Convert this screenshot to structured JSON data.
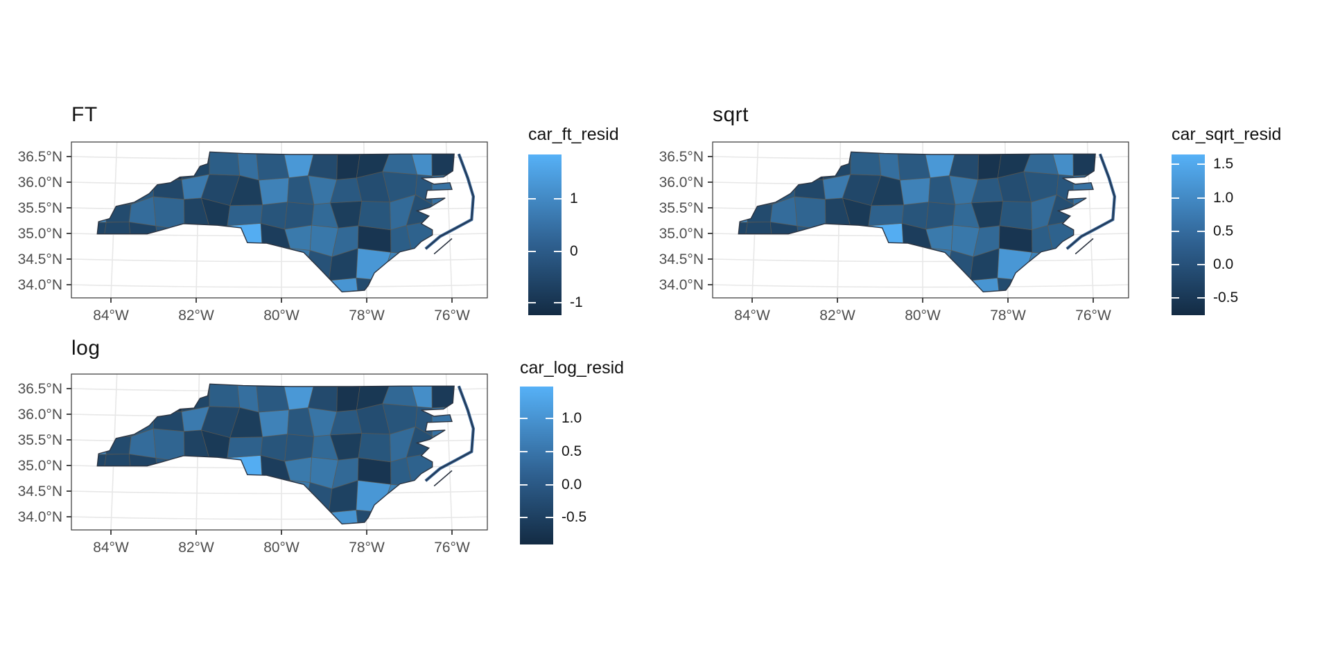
{
  "colors": {
    "gradient_low": "#132B43",
    "gradient_high": "#56B1F7",
    "panel_border": "#333333",
    "grid_line": "#e7e7e7",
    "axis_text": "#4d4d4d",
    "county_stroke": "#5f584c",
    "state_outline": "#2b3340",
    "background": "#ffffff"
  },
  "figure": {
    "panels": [
      {
        "id": "ft",
        "title": "FT",
        "legend_title": "car_ft_resid",
        "legend_ticks": [
          "1",
          "0",
          "-1"
        ],
        "x_ticks": [
          "84°W",
          "82°W",
          "80°W",
          "78°W",
          "76°W"
        ],
        "y_ticks": [
          "36.5°N",
          "36.0°N",
          "35.5°N",
          "35.0°N",
          "34.5°N",
          "34.0°N"
        ]
      },
      {
        "id": "sqrt",
        "title": "sqrt",
        "legend_title": "car_sqrt_resid",
        "legend_ticks": [
          "1.5",
          "1.0",
          "0.5",
          "0.0",
          "-0.5"
        ],
        "x_ticks": [
          "84°W",
          "82°W",
          "80°W",
          "78°W",
          "76°W"
        ],
        "y_ticks": [
          "36.5°N",
          "36.0°N",
          "35.5°N",
          "35.0°N",
          "34.5°N",
          "34.0°N"
        ]
      },
      {
        "id": "log",
        "title": "log",
        "legend_title": "car_log_resid",
        "legend_ticks": [
          "1.0",
          "0.5",
          "0.0",
          "-0.5"
        ],
        "x_ticks": [
          "84°W",
          "82°W",
          "80°W",
          "78°W",
          "76°W"
        ],
        "y_ticks": [
          "36.5°N",
          "36.0°N",
          "35.5°N",
          "35.0°N",
          "34.5°N",
          "34.0°N"
        ]
      }
    ]
  },
  "chart_data": [
    {
      "type": "choropleth",
      "title": "FT",
      "region": "North Carolina counties",
      "fill_variable": "car_ft_resid",
      "legend_tick_values": [
        1,
        0,
        -1
      ],
      "x_tick_values_deg_west": [
        84,
        82,
        80,
        78,
        76
      ],
      "y_tick_values_deg_north": [
        36.5,
        36.0,
        35.5,
        35.0,
        34.5,
        34.0
      ],
      "colorscale": {
        "low": "#132B43",
        "high": "#56B1F7"
      },
      "legend_position": "right",
      "grid": true
    },
    {
      "type": "choropleth",
      "title": "sqrt",
      "region": "North Carolina counties",
      "fill_variable": "car_sqrt_resid",
      "legend_tick_values": [
        1.5,
        1.0,
        0.5,
        0.0,
        -0.5
      ],
      "x_tick_values_deg_west": [
        84,
        82,
        80,
        78,
        76
      ],
      "y_tick_values_deg_north": [
        36.5,
        36.0,
        35.5,
        35.0,
        34.5,
        34.0
      ],
      "colorscale": {
        "low": "#132B43",
        "high": "#56B1F7"
      },
      "legend_position": "right",
      "grid": true
    },
    {
      "type": "choropleth",
      "title": "log",
      "region": "North Carolina counties",
      "fill_variable": "car_log_resid",
      "legend_tick_values": [
        1.0,
        0.5,
        0.0,
        -0.5
      ],
      "x_tick_values_deg_west": [
        84,
        82,
        80,
        78,
        76
      ],
      "y_tick_values_deg_north": [
        36.5,
        36.0,
        35.5,
        35.0,
        34.5,
        34.0
      ],
      "colorscale": {
        "low": "#132B43",
        "high": "#56B1F7"
      },
      "legend_position": "right",
      "grid": true
    }
  ]
}
